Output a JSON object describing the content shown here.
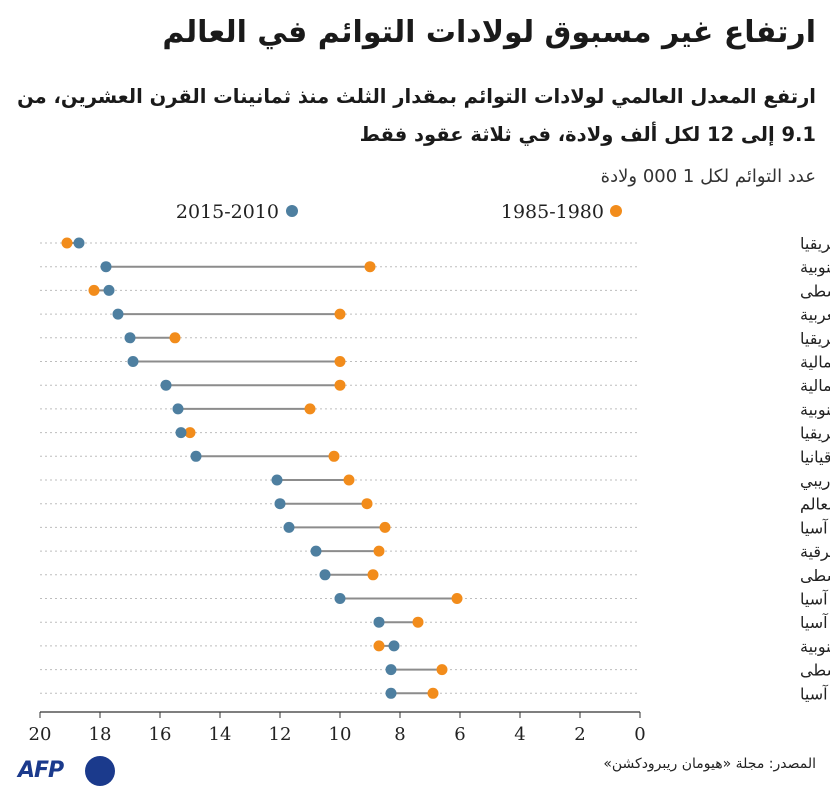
{
  "title": "ارتفاع غير مسبوق لولادات التوائم في العالم",
  "subtitle": "ارتفع المعدل العالمي لولادات التوائم بمقدار الثلث منذ ثمانينات القرن العشرين، من 9.1 إلى 12 لكل ألف ولادة، في ثلاثة عقود فقط",
  "source": "المصدر: مجلة «هيومان ريبرودكشن»",
  "logo": {
    "text": "AFP"
  },
  "colors": {
    "series_1980": "#f28c1b",
    "series_2010": "#4e7fa0",
    "connector": "#8c8c8c",
    "grid": "#bdbdbd"
  },
  "chart_data": {
    "type": "dumbbell",
    "ylabel": "عدد التوائم لكل 1 000 ولادة",
    "xlim": [
      20,
      0
    ],
    "x_ticks": [
      20,
      18,
      16,
      14,
      12,
      10,
      8,
      6,
      4,
      2,
      0
    ],
    "legend_position": "top",
    "series": [
      {
        "name": "1985-1980",
        "color": "#f28c1b"
      },
      {
        "name": "2015-2010",
        "color": "#4e7fa0"
      }
    ],
    "categories": [
      "غرب إفريقيا",
      "أوروبا الجنوبية",
      "إفريقيا الوسطى",
      "أوروبا الغربية",
      "شمال إفريقيا",
      "أميركا الشمالية",
      "أوروبا الشمالية",
      "إفريقيا الجنوبية",
      "شرق إفريقيا",
      "أوقيانيا",
      "الكاريبي",
      "العالم",
      "غرب آسيا",
      "أوروبا الشرقية",
      "أميركا الوسطى",
      "شرق آسيا",
      "جنوب آسيا",
      "أميركا الجنوبية",
      "آسيا الوسطى",
      "جنوب شرق آسيا"
    ],
    "values_1980": [
      19.1,
      9.0,
      18.2,
      10.0,
      15.5,
      10.0,
      10.0,
      11.0,
      15.0,
      10.2,
      9.7,
      9.1,
      8.5,
      8.7,
      8.9,
      6.1,
      7.4,
      8.7,
      6.6,
      6.9
    ],
    "values_2010": [
      18.7,
      17.8,
      17.7,
      17.4,
      17.0,
      16.9,
      15.8,
      15.4,
      15.3,
      14.8,
      12.1,
      12.0,
      11.7,
      10.8,
      10.5,
      10.0,
      8.7,
      8.2,
      8.3,
      8.3
    ]
  }
}
